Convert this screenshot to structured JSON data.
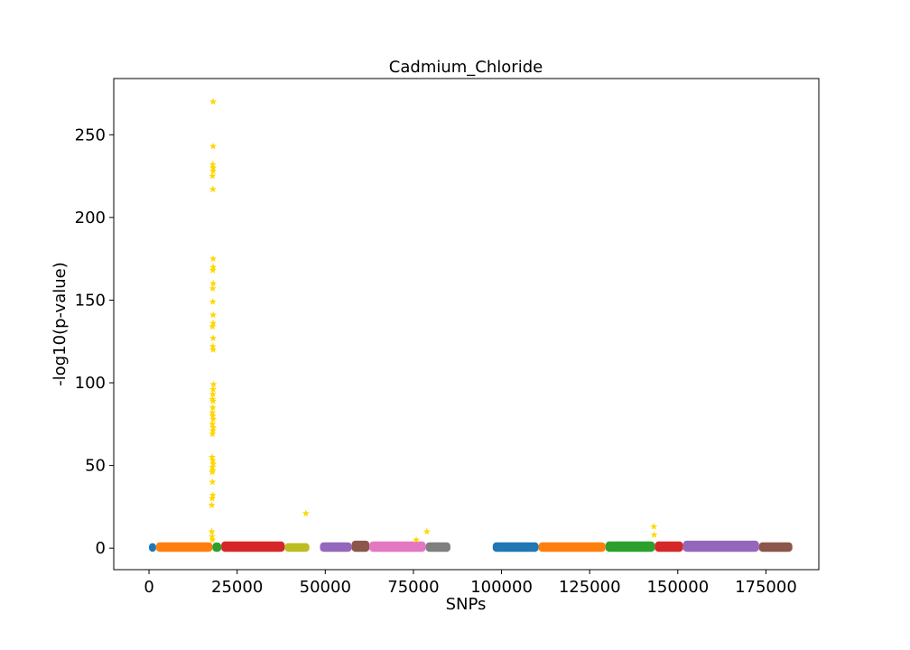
{
  "chart_data": {
    "type": "scatter",
    "title": "Cadmium_Chloride",
    "xlabel": "SNPs",
    "ylabel": "-log10(p-value)",
    "xlim": [
      -10000,
      190000
    ],
    "ylim": [
      -13,
      284
    ],
    "xticks": [
      {
        "value": 0,
        "label": "0"
      },
      {
        "value": 25000,
        "label": "25000"
      },
      {
        "value": 50000,
        "label": "50000"
      },
      {
        "value": 75000,
        "label": "75000"
      },
      {
        "value": 100000,
        "label": "100000"
      },
      {
        "value": 125000,
        "label": "125000"
      },
      {
        "value": 150000,
        "label": "150000"
      },
      {
        "value": 175000,
        "label": "175000"
      }
    ],
    "yticks": [
      {
        "value": 0,
        "label": "0"
      },
      {
        "value": 50,
        "label": "50"
      },
      {
        "value": 100,
        "label": "100"
      },
      {
        "value": 150,
        "label": "150"
      },
      {
        "value": 200,
        "label": "200"
      },
      {
        "value": 250,
        "label": "250"
      }
    ],
    "grid": false,
    "legend": "none",
    "significant_color": "#ffd700",
    "chromosomes": [
      {
        "x_start": 0,
        "x_end": 2000,
        "y_max": 2.5,
        "color": "#1f77b4"
      },
      {
        "x_start": 2000,
        "x_end": 18000,
        "y_max": 3.0,
        "color": "#ff7f0e"
      },
      {
        "x_start": 18000,
        "x_end": 20500,
        "y_max": 2.8,
        "color": "#2ca02c"
      },
      {
        "x_start": 20500,
        "x_end": 38500,
        "y_max": 3.5,
        "color": "#d62728"
      },
      {
        "x_start": 38500,
        "x_end": 45500,
        "y_max": 2.5,
        "color": "#bcbd22"
      },
      {
        "x_start": 48500,
        "x_end": 57500,
        "y_max": 3.0,
        "color": "#9467bd"
      },
      {
        "x_start": 57500,
        "x_end": 62500,
        "y_max": 4.0,
        "color": "#8c564b"
      },
      {
        "x_start": 62500,
        "x_end": 78500,
        "y_max": 3.5,
        "color": "#e377c2"
      },
      {
        "x_start": 78500,
        "x_end": 85500,
        "y_max": 3.0,
        "color": "#7f7f7f"
      },
      {
        "x_start": 97500,
        "x_end": 110500,
        "y_max": 3.0,
        "color": "#1f77b4"
      },
      {
        "x_start": 110500,
        "x_end": 129500,
        "y_max": 3.0,
        "color": "#ff7f0e"
      },
      {
        "x_start": 129500,
        "x_end": 143500,
        "y_max": 3.5,
        "color": "#2ca02c"
      },
      {
        "x_start": 143500,
        "x_end": 151500,
        "y_max": 3.5,
        "color": "#d62728"
      },
      {
        "x_start": 151500,
        "x_end": 173000,
        "y_max": 4.0,
        "color": "#9467bd"
      },
      {
        "x_start": 173000,
        "x_end": 182500,
        "y_max": 3.0,
        "color": "#8c564b"
      }
    ],
    "significant_points": [
      {
        "x": 18200,
        "y": 270
      },
      {
        "x": 18200,
        "y": 243
      },
      {
        "x": 18100,
        "y": 232
      },
      {
        "x": 18200,
        "y": 230
      },
      {
        "x": 18200,
        "y": 228
      },
      {
        "x": 18000,
        "y": 225
      },
      {
        "x": 18100,
        "y": 217
      },
      {
        "x": 18200,
        "y": 175
      },
      {
        "x": 18200,
        "y": 170
      },
      {
        "x": 18100,
        "y": 168
      },
      {
        "x": 18200,
        "y": 160
      },
      {
        "x": 18100,
        "y": 157
      },
      {
        "x": 18100,
        "y": 149
      },
      {
        "x": 18200,
        "y": 141
      },
      {
        "x": 18200,
        "y": 136
      },
      {
        "x": 18000,
        "y": 134
      },
      {
        "x": 18200,
        "y": 127
      },
      {
        "x": 18100,
        "y": 122
      },
      {
        "x": 18200,
        "y": 120
      },
      {
        "x": 18300,
        "y": 99
      },
      {
        "x": 18200,
        "y": 96
      },
      {
        "x": 18100,
        "y": 93
      },
      {
        "x": 18000,
        "y": 90
      },
      {
        "x": 18200,
        "y": 89
      },
      {
        "x": 18100,
        "y": 85
      },
      {
        "x": 18000,
        "y": 82
      },
      {
        "x": 18100,
        "y": 80
      },
      {
        "x": 18200,
        "y": 78
      },
      {
        "x": 18000,
        "y": 75
      },
      {
        "x": 18200,
        "y": 73
      },
      {
        "x": 18100,
        "y": 71
      },
      {
        "x": 18000,
        "y": 69
      },
      {
        "x": 17900,
        "y": 55
      },
      {
        "x": 18100,
        "y": 53
      },
      {
        "x": 18200,
        "y": 51
      },
      {
        "x": 18000,
        "y": 49
      },
      {
        "x": 18100,
        "y": 47
      },
      {
        "x": 17900,
        "y": 46
      },
      {
        "x": 18000,
        "y": 40
      },
      {
        "x": 18100,
        "y": 32
      },
      {
        "x": 17900,
        "y": 30
      },
      {
        "x": 17800,
        "y": 26
      },
      {
        "x": 17800,
        "y": 10
      },
      {
        "x": 17900,
        "y": 7
      },
      {
        "x": 18000,
        "y": 5
      },
      {
        "x": 44500,
        "y": 21
      },
      {
        "x": 78800,
        "y": 10
      },
      {
        "x": 75800,
        "y": 5
      },
      {
        "x": 143200,
        "y": 13
      },
      {
        "x": 143300,
        "y": 8
      }
    ]
  }
}
